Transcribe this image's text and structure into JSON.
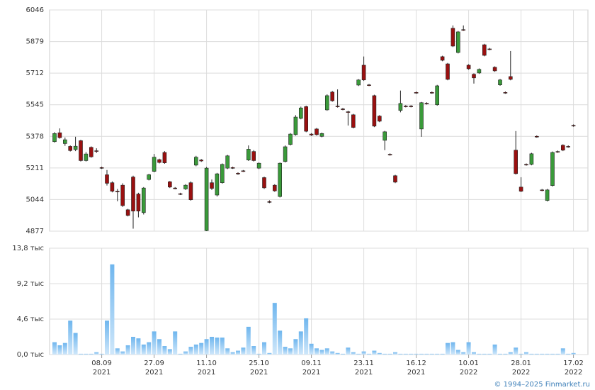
{
  "chart_data": [
    {
      "type": "candlestick",
      "open": [
        5350,
        5397,
        5340,
        5325,
        5308,
        5355,
        5250,
        5320,
        5302,
        5213,
        5175,
        5133,
        5088,
        5120,
        4990,
        5163,
        5073,
        4975,
        5150,
        5193,
        5255,
        5293,
        5138,
        5105,
        5075,
        5100,
        5133,
        5226,
        5253,
        4880,
        5133,
        5068,
        5133,
        5210,
        5213,
        5183,
        5196,
        5253,
        5298,
        5210,
        5160,
        5033,
        5120,
        5060,
        5245,
        5335,
        5387,
        5473,
        5535,
        5390,
        5417,
        5378,
        5518,
        5612,
        5538,
        5523,
        5508,
        5492,
        5649,
        5754,
        5650,
        5593,
        5485,
        5357,
        5283,
        5170,
        5515,
        5538,
        5538,
        5610,
        5417,
        5553,
        5610,
        5545,
        5799,
        5761,
        5949,
        5821,
        5942,
        5754,
        5706,
        5713,
        5862,
        5840,
        5743,
        5650,
        5610,
        5694,
        5305,
        5110,
        5230,
        5230,
        5378,
        5095,
        5039,
        5118,
        5298,
        5331,
        5325,
        5436
      ],
      "high": [
        5400,
        5420,
        5372,
        5330,
        5376,
        5360,
        5295,
        5325,
        5315,
        5218,
        5200,
        5140,
        5100,
        5130,
        4995,
        5170,
        5080,
        5110,
        5180,
        5285,
        5260,
        5300,
        5142,
        5110,
        5080,
        5125,
        5140,
        5275,
        5258,
        5216,
        5150,
        5185,
        5235,
        5280,
        5218,
        5188,
        5200,
        5330,
        5305,
        5240,
        5165,
        5040,
        5125,
        5240,
        5330,
        5395,
        5490,
        5535,
        5540,
        5395,
        5422,
        5398,
        5600,
        5618,
        5626,
        5528,
        5513,
        5497,
        5680,
        5800,
        5655,
        5598,
        5490,
        5407,
        5288,
        5175,
        5620,
        5543,
        5543,
        5615,
        5560,
        5558,
        5615,
        5650,
        5804,
        5766,
        5964,
        5935,
        5964,
        5759,
        5711,
        5737,
        5867,
        5845,
        5748,
        5681,
        5615,
        5829,
        5406,
        5162,
        5235,
        5291,
        5383,
        5100,
        5100,
        5298,
        5303,
        5336,
        5330,
        5441
      ],
      "low": [
        5345,
        5366,
        5328,
        5298,
        5300,
        5245,
        5245,
        5265,
        5290,
        5206,
        5118,
        5082,
        5035,
        5005,
        4955,
        4890,
        4950,
        4965,
        5145,
        5188,
        5235,
        5233,
        5105,
        5098,
        5068,
        5095,
        5038,
        5220,
        5243,
        4877,
        5095,
        5060,
        5128,
        5205,
        5206,
        5175,
        5190,
        5248,
        5245,
        5205,
        5100,
        5025,
        5085,
        5055,
        5240,
        5330,
        5382,
        5468,
        5400,
        5380,
        5382,
        5373,
        5513,
        5561,
        5530,
        5516,
        5435,
        5420,
        5644,
        5671,
        5643,
        5427,
        5453,
        5305,
        5276,
        5131,
        5505,
        5531,
        5531,
        5603,
        5376,
        5546,
        5603,
        5540,
        5775,
        5674,
        5850,
        5816,
        5935,
        5730,
        5657,
        5708,
        5801,
        5833,
        5719,
        5645,
        5603,
        5674,
        5176,
        5083,
        5223,
        5225,
        5371,
        5088,
        5034,
        5113,
        5291,
        5300,
        5318,
        5429
      ],
      "close": [
        5393,
        5371,
        5360,
        5303,
        5326,
        5250,
        5285,
        5270,
        5300,
        5211,
        5130,
        5088,
        5084,
        5012,
        4960,
        4983,
        4983,
        5105,
        5175,
        5268,
        5240,
        5238,
        5110,
        5103,
        5073,
        5120,
        5043,
        5268,
        5248,
        5210,
        5103,
        5180,
        5230,
        5275,
        5211,
        5180,
        5195,
        5310,
        5250,
        5236,
        5106,
        5030,
        5090,
        5236,
        5323,
        5390,
        5480,
        5528,
        5405,
        5385,
        5387,
        5393,
        5593,
        5566,
        5536,
        5521,
        5506,
        5425,
        5676,
        5676,
        5648,
        5432,
        5458,
        5402,
        5281,
        5136,
        5552,
        5536,
        5536,
        5608,
        5556,
        5551,
        5608,
        5645,
        5780,
        5679,
        5855,
        5930,
        5940,
        5735,
        5687,
        5732,
        5806,
        5838,
        5724,
        5676,
        5608,
        5679,
        5181,
        5088,
        5228,
        5286,
        5376,
        5093,
        5095,
        5293,
        5296,
        5305,
        5323,
        5434
      ],
      "up_color": "#3a9a3a",
      "down_color": "#9a1010",
      "ylim": [
        4877,
        6046
      ],
      "yticks": [
        4877,
        5044,
        5211,
        5378,
        5545,
        5712,
        5879,
        6046
      ],
      "grid": true
    },
    {
      "type": "bar",
      "categories": [
        null,
        null,
        null,
        null,
        null,
        null,
        null,
        null,
        null,
        [
          "08.09",
          "2021"
        ],
        null,
        null,
        null,
        null,
        null,
        null,
        null,
        null,
        null,
        [
          "27.09",
          "2021"
        ],
        null,
        null,
        null,
        null,
        null,
        null,
        null,
        null,
        null,
        [
          "11.10",
          "2021"
        ],
        null,
        null,
        null,
        null,
        null,
        null,
        null,
        null,
        null,
        [
          "25.10",
          "2021"
        ],
        null,
        null,
        null,
        null,
        null,
        null,
        null,
        null,
        null,
        [
          "09.11",
          "2021"
        ],
        null,
        null,
        null,
        null,
        null,
        null,
        null,
        null,
        null,
        [
          "23.11",
          "2021"
        ],
        null,
        null,
        null,
        null,
        null,
        null,
        null,
        null,
        null,
        [
          "16.12",
          "2021"
        ],
        null,
        null,
        null,
        null,
        null,
        null,
        null,
        null,
        null,
        [
          "10.01",
          "2022"
        ],
        null,
        null,
        null,
        null,
        null,
        null,
        null,
        null,
        null,
        [
          "28.01",
          "2022"
        ],
        null,
        null,
        null,
        null,
        null,
        null,
        null,
        null,
        null,
        [
          "17.02",
          "2022"
        ]
      ],
      "values": [
        1.6,
        1.2,
        1.5,
        4.4,
        2.8,
        0.1,
        0.1,
        0.1,
        0.3,
        0.1,
        4.4,
        11.7,
        0.8,
        0.4,
        1.2,
        2.3,
        2.1,
        1.3,
        1.6,
        3.0,
        2.0,
        1.1,
        0.7,
        3.0,
        0.1,
        0.4,
        1.0,
        1.3,
        1.5,
        2.0,
        2.3,
        2.2,
        2.2,
        0.8,
        0.3,
        0.5,
        0.9,
        3.6,
        1.1,
        0.1,
        1.6,
        0.2,
        6.7,
        3.1,
        1.0,
        0.8,
        2.0,
        3.0,
        4.7,
        1.4,
        0.8,
        0.6,
        0.8,
        0.4,
        0.2,
        0.1,
        0.9,
        0.3,
        0.1,
        0.4,
        0.1,
        0.5,
        0.2,
        0.1,
        0.1,
        0.3,
        0.1,
        0.1,
        0.1,
        0.1,
        0.1,
        0.1,
        0.1,
        0.1,
        0.1,
        1.5,
        1.6,
        0.6,
        0.3,
        1.6,
        0.3,
        0.1,
        0.1,
        0.1,
        1.3,
        0.1,
        0.1,
        0.3,
        0.9,
        0.1,
        0.3,
        0.1,
        0.1,
        0.1,
        0.1,
        0.1,
        0.1,
        0.8,
        0.1,
        0.2
      ],
      "color": "#8ec8f2",
      "ylim": [
        0,
        13.8
      ],
      "yticks": [
        {
          "value": 0,
          "label": "0,0 тыс"
        },
        {
          "value": 4.6,
          "label": "4,6 тыс"
        },
        {
          "value": 9.2,
          "label": "9,2 тыс"
        },
        {
          "value": 13.8,
          "label": "13,8 тыс"
        }
      ],
      "grid": true
    }
  ],
  "footer": "© 1994–2025 Finmarket.ru"
}
